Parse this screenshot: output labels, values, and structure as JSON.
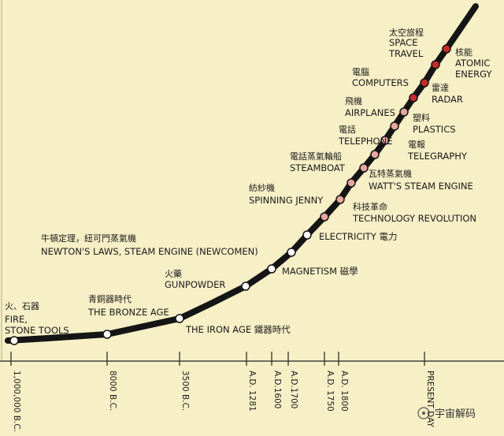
{
  "milestones": [
    {
      "zh": "火、石器",
      "en": [
        "FIRE,",
        "STONE TOOLS"
      ]
    },
    {
      "zh": "青銅器時代",
      "en": [
        "THE BRONZE AGE"
      ]
    },
    {
      "zh": "",
      "en": [
        "THE IRON AGE 鐵器時代"
      ]
    },
    {
      "zh": "火藥",
      "en": [
        "GUNPOWDER"
      ]
    },
    {
      "zh": "",
      "en": [
        "MAGNETISM 磁學"
      ]
    },
    {
      "zh": "牛頓定理，紐可門蒸氣機",
      "en": [
        "NEWTON'S LAWS, STEAM ENGINE (NEWCOMEN)"
      ]
    },
    {
      "zh": "",
      "en": [
        "ELECTRICITY 電力"
      ]
    },
    {
      "zh": "科技革命",
      "en": [
        "TECHNOLOGY REVOLUTION"
      ]
    },
    {
      "zh": "紡紗機",
      "en": [
        "SPINNING JENNY"
      ]
    },
    {
      "zh": "瓦特蒸氣機",
      "en": [
        "WATT'S STEAM ENGINE"
      ]
    },
    {
      "zh": "電話蒸氣輪船",
      "en": [
        "STEAMBOAT"
      ]
    },
    {
      "zh": "電報",
      "en": [
        "TELEGRAPHY"
      ]
    },
    {
      "zh": "電話",
      "en": [
        "TELEPHONE"
      ]
    },
    {
      "zh": "塑料",
      "en": [
        "PLASTICS"
      ]
    },
    {
      "zh": "飛機",
      "en": [
        "AIRPLANES"
      ]
    },
    {
      "zh": "雷達",
      "en": [
        "RADAR"
      ]
    },
    {
      "zh": "電腦",
      "en": [
        "COMPUTERS"
      ]
    },
    {
      "zh": "核能",
      "en": [
        "ATOMIC",
        "ENERGY"
      ]
    },
    {
      "zh": "太空旅程",
      "en": [
        "SPACE",
        "TRAVEL"
      ]
    }
  ],
  "time_axis": [
    "1,000,000 B.C.",
    "8000 B.C.",
    "3500 B.C.",
    "A.D. 1281",
    "A.D.1600",
    "A.D.1700",
    "A.D. 1750",
    "A.D. 1800",
    "PRESENT DAY"
  ],
  "watermark": "宇宙解码",
  "colors": {
    "background": "#f7efc6",
    "curve": "#151515",
    "dot_early": "#ffffff",
    "dot_mid": "#e7a79e",
    "dot_late": "#c62a2a"
  }
}
